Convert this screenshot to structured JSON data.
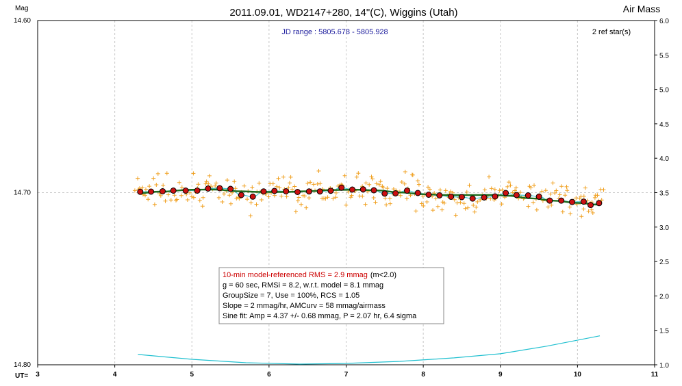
{
  "chart_data": {
    "type": "scatter",
    "title": "2011.09.01, WD2147+280, 14\"(C), Wiggins (Utah)",
    "ylabel": "Mag",
    "xlabel": "UT=",
    "y2label": "Air Mass",
    "subtitle": "JD range : 5805.678 - 5805.928",
    "ref_stars": "2 ref star(s)",
    "xlim": [
      3,
      11
    ],
    "ylim": [
      14.6,
      14.8
    ],
    "y_inverted": true,
    "y2lim": [
      1.0,
      6.0
    ],
    "x_ticks": [
      "3",
      "4",
      "5",
      "6",
      "7",
      "8",
      "9",
      "10",
      "11"
    ],
    "y_ticks": [
      "14.60",
      "14.70",
      "14.80"
    ],
    "y2_ticks": [
      "6.0",
      "5.5",
      "5.0",
      "4.5",
      "4.0",
      "3.5",
      "3.0",
      "2.5",
      "2.0",
      "1.5",
      "1.0"
    ],
    "grid": true,
    "info_lines": [
      {
        "text": "10-min model-referenced RMS = 2.9 mmag",
        "suffix": "(m<2.0)",
        "color": "#cc0000"
      },
      {
        "text": "g = 60 sec, RMSi = 8.2, w.r.t. model = 8.1 mmag",
        "color": "#000000"
      },
      {
        "text": "GroupSize = 7, Use = 100%, RCS = 1.05",
        "color": "#000000"
      },
      {
        "text": "Slope = 2 mmag/hr, AMCurv = 58 mmag/airmass",
        "color": "#000000"
      },
      {
        "text": "Sine fit: Amp = 4.37 +/- 0.68 mmag, P = 2.07 hr, 6.4 sigma",
        "color": "#1a1a9c"
      }
    ],
    "colors": {
      "raw_points": "#f0a020",
      "binned_fill": "#cc1111",
      "model_line": "#1e6b1e",
      "sine_line": "#40c8d0",
      "airmass_line": "#20c0d0",
      "grid": "#c8c8c8"
    },
    "binned_points": [
      {
        "x": 4.33,
        "y": 14.6995
      },
      {
        "x": 4.47,
        "y": 14.6994
      },
      {
        "x": 4.62,
        "y": 14.6992
      },
      {
        "x": 4.76,
        "y": 14.6988
      },
      {
        "x": 4.92,
        "y": 14.6988
      },
      {
        "x": 5.07,
        "y": 14.6988
      },
      {
        "x": 5.21,
        "y": 14.6976
      },
      {
        "x": 5.36,
        "y": 14.6974
      },
      {
        "x": 5.5,
        "y": 14.6978
      },
      {
        "x": 5.64,
        "y": 14.7014
      },
      {
        "x": 5.79,
        "y": 14.7023
      },
      {
        "x": 5.93,
        "y": 14.6993
      },
      {
        "x": 6.07,
        "y": 14.699
      },
      {
        "x": 6.22,
        "y": 14.6992
      },
      {
        "x": 6.37,
        "y": 14.6996
      },
      {
        "x": 6.52,
        "y": 14.6993
      },
      {
        "x": 6.66,
        "y": 14.6993
      },
      {
        "x": 6.8,
        "y": 14.6989
      },
      {
        "x": 6.94,
        "y": 14.6971
      },
      {
        "x": 7.08,
        "y": 14.6982
      },
      {
        "x": 7.22,
        "y": 14.6981
      },
      {
        "x": 7.36,
        "y": 14.6986
      },
      {
        "x": 7.5,
        "y": 14.7005
      },
      {
        "x": 7.64,
        "y": 14.7004
      },
      {
        "x": 7.79,
        "y": 14.6988
      },
      {
        "x": 7.93,
        "y": 14.7002
      },
      {
        "x": 8.07,
        "y": 14.7012
      },
      {
        "x": 8.21,
        "y": 14.7016
      },
      {
        "x": 8.36,
        "y": 14.7024
      },
      {
        "x": 8.5,
        "y": 14.7026
      },
      {
        "x": 8.64,
        "y": 14.7034
      },
      {
        "x": 8.79,
        "y": 14.7028
      },
      {
        "x": 8.93,
        "y": 14.7022
      },
      {
        "x": 9.07,
        "y": 14.7002
      },
      {
        "x": 9.21,
        "y": 14.7014
      },
      {
        "x": 9.36,
        "y": 14.7016
      },
      {
        "x": 9.5,
        "y": 14.7023
      },
      {
        "x": 9.64,
        "y": 14.7046
      },
      {
        "x": 9.79,
        "y": 14.7046
      },
      {
        "x": 9.93,
        "y": 14.7054
      },
      {
        "x": 10.08,
        "y": 14.7052
      },
      {
        "x": 10.17,
        "y": 14.7072
      },
      {
        "x": 10.28,
        "y": 14.7061
      }
    ],
    "model_curve": [
      {
        "x": 4.3,
        "y": 14.7003
      },
      {
        "x": 4.6,
        "y": 14.6994
      },
      {
        "x": 5.0,
        "y": 14.6983
      },
      {
        "x": 5.3,
        "y": 14.6982
      },
      {
        "x": 5.6,
        "y": 14.6992
      },
      {
        "x": 5.9,
        "y": 14.6996
      },
      {
        "x": 6.2,
        "y": 14.6996
      },
      {
        "x": 6.5,
        "y": 14.6992
      },
      {
        "x": 6.8,
        "y": 14.6985
      },
      {
        "x": 7.1,
        "y": 14.6983
      },
      {
        "x": 7.4,
        "y": 14.6987
      },
      {
        "x": 7.7,
        "y": 14.6999
      },
      {
        "x": 8.0,
        "y": 14.7009
      },
      {
        "x": 8.3,
        "y": 14.7014
      },
      {
        "x": 8.6,
        "y": 14.7014
      },
      {
        "x": 8.9,
        "y": 14.7013
      },
      {
        "x": 9.1,
        "y": 14.7018
      },
      {
        "x": 9.4,
        "y": 14.7033
      },
      {
        "x": 9.7,
        "y": 14.7047
      },
      {
        "x": 10.0,
        "y": 14.706
      },
      {
        "x": 10.28,
        "y": 14.707
      }
    ],
    "airmass_curve": [
      {
        "x": 4.3,
        "y": 1.15
      },
      {
        "x": 5.0,
        "y": 1.08
      },
      {
        "x": 5.7,
        "y": 1.03
      },
      {
        "x": 6.4,
        "y": 1.01
      },
      {
        "x": 7.0,
        "y": 1.02
      },
      {
        "x": 7.7,
        "y": 1.05
      },
      {
        "x": 8.4,
        "y": 1.1
      },
      {
        "x": 9.0,
        "y": 1.16
      },
      {
        "x": 9.6,
        "y": 1.27
      },
      {
        "x": 10.29,
        "y": 1.42
      }
    ]
  }
}
